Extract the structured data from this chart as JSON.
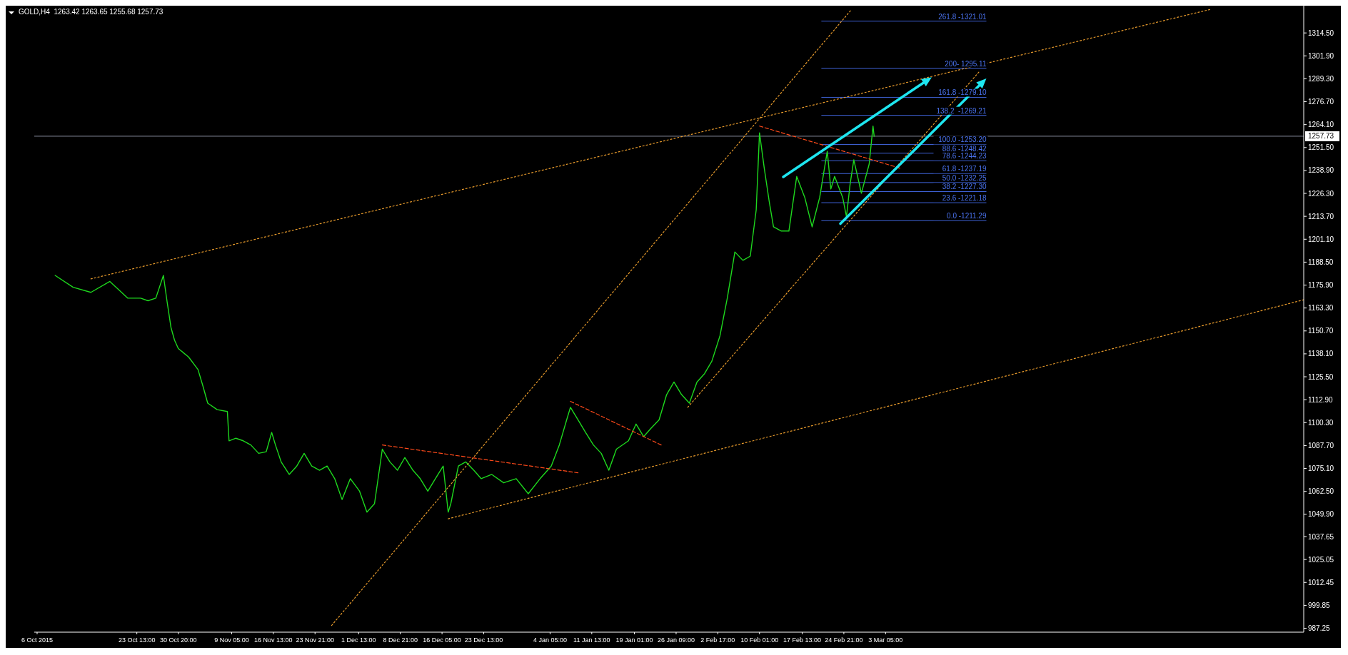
{
  "chart_data": {
    "type": "line",
    "title": "GOLD,H4  1263.42 1263.65 1255.68 1257.73",
    "xlim": [
      "2015-10-05T12:00",
      "2016-05-15T18:00"
    ],
    "xticks": [
      {
        "value": "2015-10-06",
        "label": "6 Oct 2015"
      },
      {
        "value": "2015-10-23T13:00",
        "label": "23 Oct 13:00"
      },
      {
        "value": "2015-10-30T20:00",
        "label": "30 Oct 20:00"
      },
      {
        "value": "2015-11-09T05:00",
        "label": "9 Nov 05:00"
      },
      {
        "value": "2015-11-16T13:00",
        "label": "16 Nov 13:00"
      },
      {
        "value": "2015-11-23T21:00",
        "label": "23 Nov 21:00"
      },
      {
        "value": "2015-12-01T13:00",
        "label": "1 Dec 13:00"
      },
      {
        "value": "2015-12-08T21:00",
        "label": "8 Dec 21:00"
      },
      {
        "value": "2015-12-16T05:00",
        "label": "16 Dec 05:00"
      },
      {
        "value": "2015-12-23T13:00",
        "label": "23 Dec 13:00"
      },
      {
        "value": "2016-01-04T05:00",
        "label": "4 Jan 05:00"
      },
      {
        "value": "2016-01-11T13:00",
        "label": "11 Jan 13:00"
      },
      {
        "value": "2016-01-19T01:00",
        "label": "19 Jan 01:00"
      },
      {
        "value": "2016-01-26T09:00",
        "label": "26 Jan 09:00"
      },
      {
        "value": "2016-02-02T17:00",
        "label": "2 Feb 17:00"
      },
      {
        "value": "2016-02-10T01:00",
        "label": "10 Feb 01:00"
      },
      {
        "value": "2016-02-17T13:00",
        "label": "17 Feb 13:00"
      },
      {
        "value": "2016-02-24T21:00",
        "label": "24 Feb 21:00"
      },
      {
        "value": "2016-03-03T05:00",
        "label": "3 Mar 05:00"
      }
    ],
    "ylim": [
      985.1,
      1327.9
    ],
    "yticks": [
      {
        "value": 987.25,
        "label": "987.25"
      },
      {
        "value": 999.85,
        "label": "999.85"
      },
      {
        "value": 1012.45,
        "label": "1012.45"
      },
      {
        "value": 1025.05,
        "label": "1025.05"
      },
      {
        "value": 1037.65,
        "label": "1037.65"
      },
      {
        "value": 1049.9,
        "label": "1049.90"
      },
      {
        "value": 1062.5,
        "label": "1062.50"
      },
      {
        "value": 1075.1,
        "label": "1075.10"
      },
      {
        "value": 1087.7,
        "label": "1087.70"
      },
      {
        "value": 1100.3,
        "label": "1100.30"
      },
      {
        "value": 1112.9,
        "label": "1112.90"
      },
      {
        "value": 1125.5,
        "label": "1125.50"
      },
      {
        "value": 1138.1,
        "label": "1138.10"
      },
      {
        "value": 1150.7,
        "label": "1150.70"
      },
      {
        "value": 1163.3,
        "label": "1163.30"
      },
      {
        "value": 1175.9,
        "label": "1175.90"
      },
      {
        "value": 1188.5,
        "label": "1188.50"
      },
      {
        "value": 1201.1,
        "label": "1201.10"
      },
      {
        "value": 1213.7,
        "label": "1213.70"
      },
      {
        "value": 1226.3,
        "label": "1226.30"
      },
      {
        "value": 1238.9,
        "label": "1238.90"
      },
      {
        "value": 1251.5,
        "label": "1251.50"
      },
      {
        "value": 1264.1,
        "label": "1264.10"
      },
      {
        "value": 1276.7,
        "label": "1276.70"
      },
      {
        "value": 1289.3,
        "label": "1289.30"
      },
      {
        "value": 1301.9,
        "label": "1301.90"
      },
      {
        "value": 1314.5,
        "label": "1314.50"
      }
    ],
    "ref_lines": [
      {
        "axis": "y",
        "value": 1257.73,
        "label": "1257.73",
        "color": "#8a8fa0"
      },
      {
        "axis": "y",
        "value": 1321.01,
        "color": "#3f63d8"
      },
      {
        "axis": "y",
        "value": 1295.11,
        "color": "#3f63d8"
      },
      {
        "axis": "y",
        "value": 1279.1,
        "color": "#3f63d8"
      },
      {
        "axis": "y",
        "value": 1269.21,
        "color": "#3f63d8"
      },
      {
        "axis": "y",
        "value": 1253.2,
        "color": "#3f63d8"
      },
      {
        "axis": "y",
        "value": 1248.42,
        "color": "#3f63d8"
      },
      {
        "axis": "y",
        "value": 1244.23,
        "color": "#3f63d8"
      },
      {
        "axis": "y",
        "value": 1237.19,
        "color": "#3f63d8"
      },
      {
        "axis": "y",
        "value": 1232.25,
        "color": "#3f63d8"
      },
      {
        "axis": "y",
        "value": 1227.3,
        "color": "#3f63d8"
      },
      {
        "axis": "y",
        "value": 1221.18,
        "color": "#3f63d8"
      },
      {
        "axis": "y",
        "value": 1211.29,
        "color": "#3f63d8"
      }
    ],
    "annotations": [
      {
        "text": "261.8 -1321.01",
        "y": 1321.01
      },
      {
        "text": "200- 1295.11",
        "y": 1295.11
      },
      {
        "text": "161.8 -1279.10",
        "y": 1279.1
      },
      {
        "text": "138.2  -1269.21",
        "y": 1269.21
      },
      {
        "text": "100.0 -1253.20",
        "y": 1253.2
      },
      {
        "text": "88.6 -1248.42",
        "y": 1248.42
      },
      {
        "text": "78.6 -1244.23",
        "y": 1244.23
      },
      {
        "text": "61.8 -1237.19",
        "y": 1237.19
      },
      {
        "text": "50.0 -1232.25",
        "y": 1232.25
      },
      {
        "text": "38.2 -1227.30",
        "y": 1227.3
      },
      {
        "text": "23.6 -1221.18",
        "y": 1221.18
      },
      {
        "text": "0.0 -1211.29",
        "y": 1211.29
      }
    ],
    "series": [
      {
        "type": "line",
        "color": "#1ed81e",
        "line_style": "solid",
        "x": [
          "2015-10-09T04:00",
          "2015-10-12T08:00",
          "2015-10-15T11:00",
          "2015-10-18T19:00",
          "2015-10-21T23:00",
          "2015-10-24T05:00",
          "2015-10-25T12:00",
          "2015-10-26T21:00",
          "2015-10-28T05:00",
          "2015-10-28T21:00",
          "2015-10-29T13:00",
          "2015-10-30T04:00",
          "2015-10-30T20:00",
          "2015-11-01T15:00",
          "2015-11-03T07:00",
          "2015-11-04T04:00",
          "2015-11-05T00:00",
          "2015-11-06T16:00",
          "2015-11-08T11:00",
          "2015-11-08T18:00",
          "2015-11-09T23:00",
          "2015-11-11T06:00",
          "2015-11-12T14:00",
          "2015-11-13T23:00",
          "2015-11-15T07:00",
          "2015-11-16T06:00",
          "2015-11-16T22:00",
          "2015-11-17T22:00",
          "2015-11-19T08:00",
          "2015-11-20T16:00",
          "2015-11-21T23:00",
          "2015-11-23T07:00",
          "2015-11-24T16:00",
          "2015-11-26T00:00",
          "2015-11-27T08:00",
          "2015-11-28T15:00",
          "2015-11-30T02:00",
          "2015-12-01T17:00",
          "2015-12-03T00:00",
          "2015-12-04T08:00",
          "2015-12-05T17:00",
          "2015-12-07T01:00",
          "2015-12-08T09:00",
          "2015-12-09T16:00",
          "2015-12-11T02:00",
          "2015-12-12T09:00",
          "2015-12-13T17:00",
          "2015-12-15T01:00",
          "2015-12-16T10:00",
          "2015-12-17T07:00",
          "2015-12-17T18:00",
          "2015-12-19T02:00",
          "2015-12-20T09:00",
          "2015-12-21T19:00",
          "2015-12-23T02:00",
          "2015-12-24T23:00",
          "2015-12-27T01:00",
          "2015-12-29T06:00",
          "2015-12-31T09:00",
          "2016-01-02T11:00",
          "2016-01-04T10:00",
          "2016-01-05T20:00",
          "2016-01-07T03:00",
          "2016-01-07T19:00",
          "2016-01-09T03:00",
          "2016-01-10T11:00",
          "2016-01-11T20:00",
          "2016-01-13T05:00",
          "2016-01-14T13:00",
          "2016-01-15T21:00",
          "2016-01-18T00:00",
          "2016-01-19T08:00",
          "2016-01-20T16:00",
          "2016-01-21T23:00",
          "2016-01-23T09:00",
          "2016-01-24T17:00",
          "2016-01-26T00:00",
          "2016-01-27T08:00",
          "2016-01-28T17:00",
          "2016-01-30T01:00",
          "2016-01-31T09:00",
          "2016-02-01T16:00",
          "2016-02-03T02:00",
          "2016-02-04T09:00",
          "2016-02-05T17:00",
          "2016-02-07T03:00",
          "2016-02-08T10:00",
          "2016-02-09T11:00",
          "2016-02-10T01:00",
          "2016-02-10T21:00",
          "2016-02-11T18:00",
          "2016-02-12T12:00",
          "2016-02-13T21:00",
          "2016-02-15T05:00",
          "2016-02-16T14:00",
          "2016-02-18T00:00",
          "2016-02-19T07:00",
          "2016-02-20T15:00",
          "2016-02-21T23:00",
          "2016-02-22T14:00",
          "2016-02-23T06:00",
          "2016-02-24T16:00",
          "2016-02-25T08:00",
          "2016-02-25T23:00",
          "2016-02-26T15:00",
          "2016-02-27T23:00",
          "2016-02-29T08:00",
          "2016-03-01T00:00",
          "2016-03-01T05:00"
        ],
        "values": [
          1181.2,
          1174.7,
          1171.9,
          1177.9,
          1168.7,
          1168.7,
          1167.3,
          1168.7,
          1181.2,
          1166.4,
          1152.6,
          1145.6,
          1141.0,
          1136.4,
          1129.5,
          1120.3,
          1111.0,
          1107.4,
          1106.4,
          1090.3,
          1091.7,
          1090.3,
          1088.0,
          1083.4,
          1084.3,
          1094.9,
          1088.0,
          1078.7,
          1071.8,
          1076.4,
          1083.4,
          1076.4,
          1074.1,
          1076.4,
          1069.5,
          1058.0,
          1069.5,
          1062.6,
          1051.1,
          1055.7,
          1085.7,
          1078.7,
          1074.1,
          1081.1,
          1074.1,
          1069.5,
          1062.6,
          1069.5,
          1076.4,
          1051.1,
          1055.7,
          1076.4,
          1078.7,
          1074.1,
          1069.5,
          1071.8,
          1067.2,
          1069.5,
          1061.2,
          1069.5,
          1076.4,
          1088.0,
          1101.8,
          1108.7,
          1101.8,
          1094.9,
          1088.0,
          1083.4,
          1074.1,
          1085.7,
          1090.3,
          1099.5,
          1092.6,
          1097.2,
          1101.8,
          1115.7,
          1122.6,
          1115.7,
          1111.0,
          1122.6,
          1127.2,
          1134.1,
          1148.0,
          1168.7,
          1194.1,
          1189.5,
          1191.8,
          1217.2,
          1259.6,
          1240.2,
          1221.8,
          1207.9,
          1205.6,
          1205.6,
          1235.6,
          1224.1,
          1207.9,
          1224.1,
          1249.5,
          1228.7,
          1235.6,
          1224.1,
          1213.5,
          1231.0,
          1244.8,
          1226.4,
          1242.5,
          1263.3,
          1257.7
        ]
      },
      {
        "type": "line",
        "color": "#e89b2c",
        "line_style": "dotted",
        "x": [
          "2015-10-15T11:00",
          "2016-04-29T10:00"
        ],
        "values": [
          1179.3,
          1327.5
        ]
      },
      {
        "type": "line",
        "color": "#e89b2c",
        "line_style": "dotted",
        "x": [
          "2015-11-26T19:00",
          "2016-02-26T06:00"
        ],
        "values": [
          988.8,
          1327.5
        ]
      },
      {
        "type": "line",
        "color": "#e89b2c",
        "line_style": "dotted",
        "x": [
          "2015-12-17T07:00",
          "2016-05-15T18:00"
        ],
        "values": [
          1047.4,
          1167.8
        ]
      },
      {
        "type": "line",
        "color": "#e89b2c",
        "line_style": "dotted",
        "x": [
          "2016-01-28T10:00",
          "2016-03-19T17:00"
        ],
        "values": [
          1108.7,
          1293.3
        ]
      },
      {
        "type": "line",
        "color": "#ff4a1a",
        "line_style": "dashed",
        "x": [
          "2015-12-05T17:00",
          "2016-01-09T03:00"
        ],
        "values": [
          1088.0,
          1072.7
        ]
      },
      {
        "type": "line",
        "color": "#ff4a1a",
        "line_style": "dashed",
        "x": [
          "2016-01-07T19:00",
          "2016-01-23T18:00"
        ],
        "values": [
          1112.0,
          1088.0
        ]
      },
      {
        "type": "line",
        "color": "#ff4a1a",
        "line_style": "dashed",
        "x": [
          "2016-02-10T01:00",
          "2016-03-05T17:00"
        ],
        "values": [
          1263.3,
          1240.2
        ]
      }
    ]
  }
}
